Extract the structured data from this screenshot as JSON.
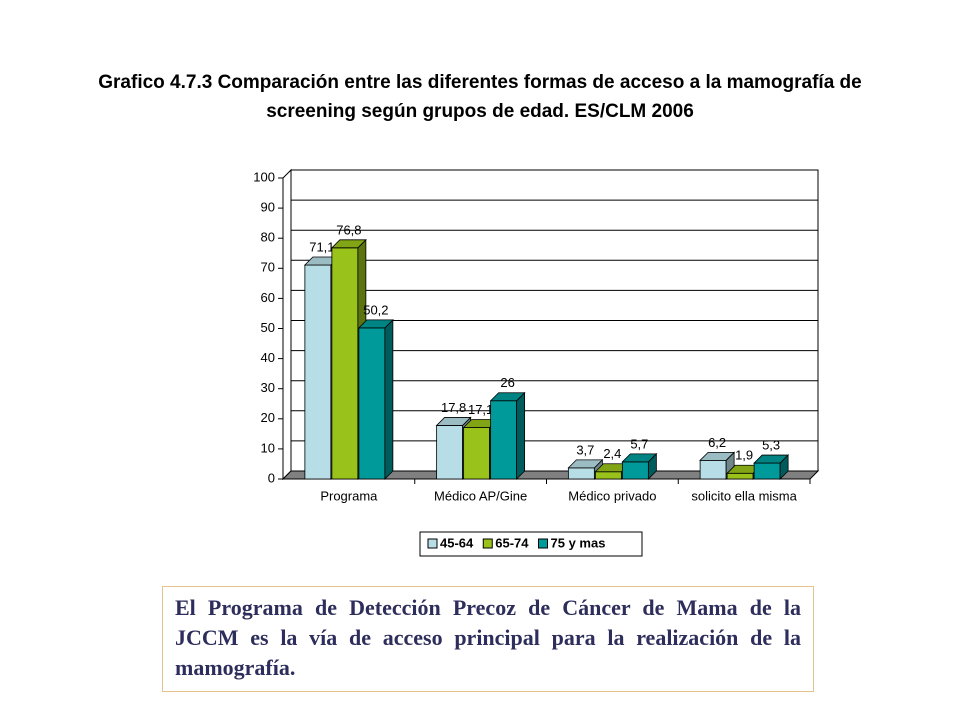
{
  "chart_data": {
    "type": "bar",
    "title": "Grafico  4.7.3  Comparación entre las diferentes formas de acceso a la mamografía de screening según grupos de edad. ES/CLM 2006",
    "categories": [
      "Programa",
      "Médico AP/Gine",
      "Médico privado",
      "solicito ella misma"
    ],
    "series": [
      {
        "name": "45-64",
        "color": "#b7dde6",
        "values": [
          71.1,
          17.8,
          3.7,
          6.2
        ],
        "value_labels": [
          "71,1",
          "17,8",
          "3,7",
          "6,2"
        ]
      },
      {
        "name": "65-74",
        "color": "#99c21a",
        "values": [
          76.8,
          17.1,
          2.4,
          1.9
        ],
        "value_labels": [
          "76,8",
          "17,1",
          "2,4",
          "1,9"
        ]
      },
      {
        "name": "75 y mas",
        "color": "#009a9a",
        "values": [
          50.2,
          26,
          5.7,
          5.3
        ],
        "value_labels": [
          "50,2",
          "26",
          "5,7",
          "5,3"
        ]
      }
    ],
    "ylim": [
      0,
      100
    ],
    "yticks": [
      0,
      10,
      20,
      30,
      40,
      50,
      60,
      70,
      80,
      90,
      100
    ],
    "grid": true
  },
  "text_box": "El Programa de Detección Precoz de Cáncer de Mama de la JCCM es la vía de acceso principal para la realización de la mamografía."
}
